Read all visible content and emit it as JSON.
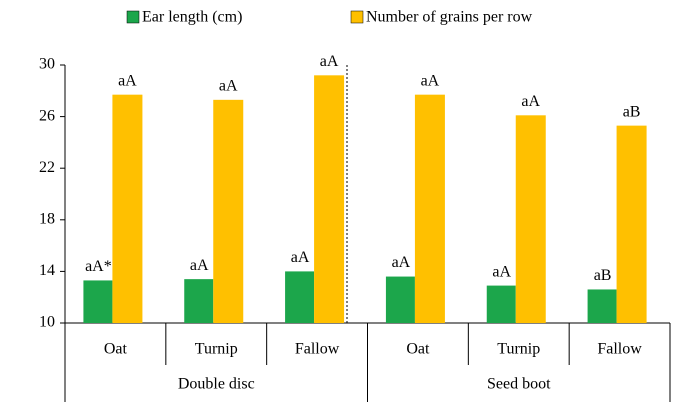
{
  "chart_data": {
    "type": "bar",
    "categories": [
      "Oat",
      "Turnip",
      "Fallow",
      "Oat",
      "Turnip",
      "Fallow"
    ],
    "groups": [
      "Double disc",
      "Seed boot"
    ],
    "series": [
      {
        "name": "Ear length (cm)",
        "color": "#1ca64b",
        "values": [
          13.3,
          13.4,
          14.0,
          13.6,
          12.9,
          12.6
        ],
        "letters": [
          "aA*",
          "aA",
          "aA",
          "aA",
          "aA",
          "aB"
        ]
      },
      {
        "name": "Number of grains per row",
        "color": "#ffc000",
        "values": [
          27.7,
          27.3,
          29.2,
          27.7,
          26.1,
          25.3
        ],
        "letters": [
          "aA",
          "aA",
          "aA",
          "aA",
          "aA",
          "aB"
        ]
      }
    ],
    "ylim": [
      10,
      30
    ],
    "yticks": [
      10,
      14,
      18,
      22,
      26,
      30
    ],
    "grid": false,
    "legend": "top"
  }
}
